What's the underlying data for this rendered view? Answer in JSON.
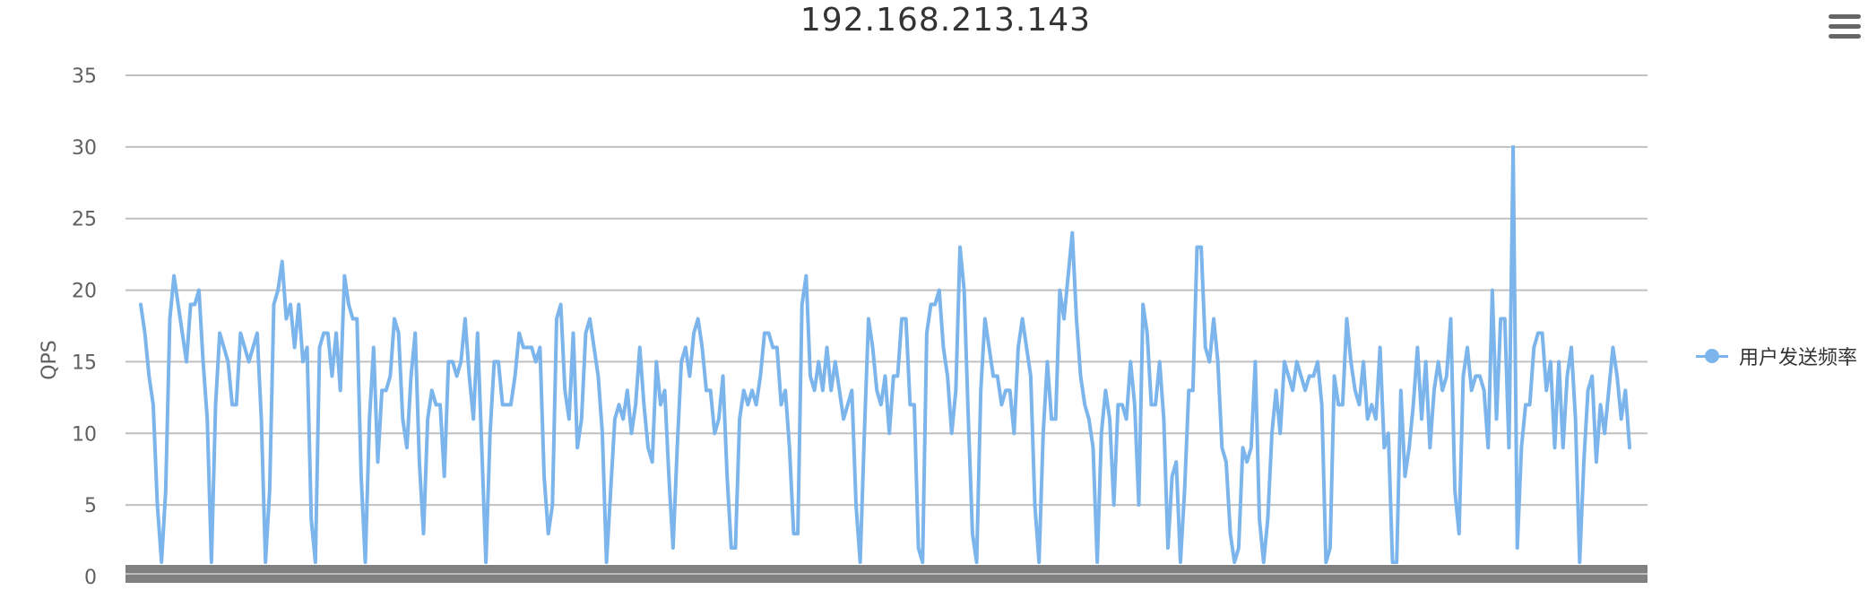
{
  "chart_data": {
    "type": "line",
    "title": "192.168.213.143",
    "xlabel": "",
    "ylabel": "QPS",
    "ylim": [
      0,
      35
    ],
    "yticks": [
      "0",
      "5",
      "10",
      "15",
      "20",
      "25",
      "30",
      "35"
    ],
    "grid": true,
    "legend_position": "right",
    "series": [
      {
        "name": "用户发送频率",
        "color": "#7cb5ec",
        "values": [
          19,
          17,
          14,
          12,
          5,
          1,
          6,
          18,
          21,
          19,
          17,
          15,
          19,
          19,
          20,
          15,
          11,
          1,
          12,
          17,
          16,
          15,
          12,
          12,
          17,
          16,
          15,
          16,
          17,
          11,
          1,
          6,
          19,
          20,
          22,
          18,
          19,
          16,
          19,
          15,
          16,
          4,
          1,
          16,
          17,
          17,
          14,
          17,
          13,
          21,
          19,
          18,
          18,
          7,
          1,
          11,
          16,
          8,
          13,
          13,
          14,
          18,
          17,
          11,
          9,
          14,
          17,
          8,
          3,
          11,
          13,
          12,
          12,
          7,
          15,
          15,
          14,
          15,
          18,
          14,
          11,
          17,
          9,
          1,
          10,
          15,
          15,
          12,
          12,
          12,
          14,
          17,
          16,
          16,
          16,
          15,
          16,
          7,
          3,
          5,
          18,
          19,
          13,
          11,
          17,
          9,
          11,
          17,
          18,
          16,
          14,
          10,
          1,
          6,
          11,
          12,
          11,
          13,
          10,
          12,
          16,
          12,
          9,
          8,
          15,
          12,
          13,
          7,
          2,
          9,
          15,
          16,
          14,
          17,
          18,
          16,
          13,
          13,
          10,
          11,
          14,
          7,
          2,
          2,
          11,
          13,
          12,
          13,
          12,
          14,
          17,
          17,
          16,
          16,
          12,
          13,
          9,
          3,
          3,
          19,
          21,
          14,
          13,
          15,
          13,
          16,
          13,
          15,
          13,
          11,
          12,
          13,
          5,
          1,
          10,
          18,
          16,
          13,
          12,
          14,
          10,
          14,
          14,
          18,
          18,
          12,
          12,
          2,
          1,
          17,
          19,
          19,
          20,
          16,
          14,
          10,
          13,
          23,
          20,
          11,
          3,
          1,
          13,
          18,
          16,
          14,
          14,
          12,
          13,
          13,
          10,
          16,
          18,
          16,
          14,
          5,
          1,
          10,
          15,
          11,
          11,
          20,
          18,
          21,
          24,
          18,
          14,
          12,
          11,
          9,
          1,
          10,
          13,
          11,
          5,
          12,
          12,
          11,
          15,
          12,
          5,
          19,
          17,
          12,
          12,
          15,
          11,
          2,
          7,
          8,
          1,
          6,
          13,
          13,
          23,
          23,
          16,
          15,
          18,
          15,
          9,
          8,
          3,
          1,
          2,
          9,
          8,
          9,
          15,
          4,
          1,
          4,
          10,
          13,
          10,
          15,
          14,
          13,
          15,
          14,
          13,
          14,
          14,
          15,
          12,
          1,
          2,
          14,
          12,
          12,
          18,
          15,
          13,
          12,
          15,
          11,
          12,
          11,
          16,
          9,
          10,
          1,
          1,
          13,
          7,
          9,
          12,
          16,
          11,
          15,
          9,
          13,
          15,
          13,
          14,
          18,
          6,
          3,
          14,
          16,
          13,
          14,
          14,
          13,
          9,
          20,
          11,
          18,
          18,
          9,
          30,
          2,
          9,
          12,
          12,
          16,
          17,
          17,
          13,
          15,
          9,
          15,
          9,
          14,
          16,
          11,
          1,
          8,
          13,
          14,
          8,
          12,
          10,
          13,
          16,
          14,
          11,
          13,
          9
        ]
      }
    ]
  },
  "menu": {
    "icon": "hamburger-menu-icon"
  }
}
